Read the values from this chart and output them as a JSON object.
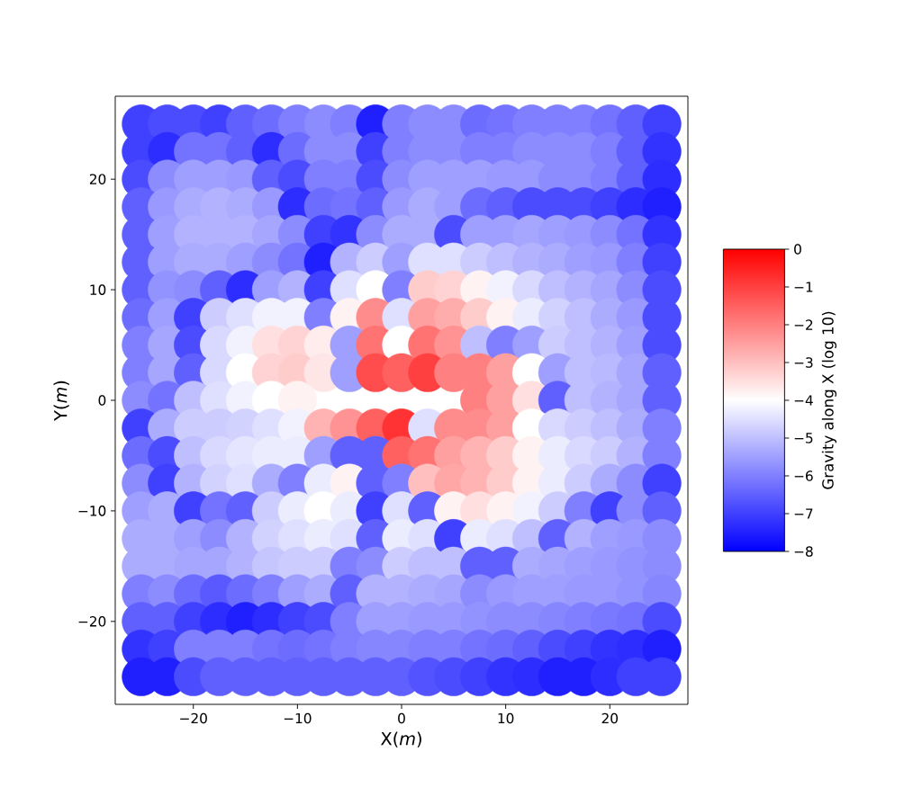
{
  "chart_data": {
    "type": "scatter",
    "xlabel": "X(*m*)",
    "ylabel": "Y(*m*)",
    "clabel": "Gravity along X (log 10)",
    "marker": "circle",
    "xlim": [
      -27.5,
      27.5
    ],
    "ylim": [
      -27.5,
      27.5
    ],
    "xticks": [
      {
        "value": -20,
        "label": "−20"
      },
      {
        "value": -10,
        "label": "−10"
      },
      0,
      10,
      20
    ],
    "yticks": [
      {
        "value": -20,
        "label": "−20"
      },
      {
        "value": -10,
        "label": "−10"
      },
      0,
      10,
      20
    ],
    "clim": [
      -8,
      0
    ],
    "cticks": [
      {
        "value": -8,
        "label": "−8"
      },
      {
        "value": -7,
        "label": "−7"
      },
      {
        "value": -6,
        "label": "−6"
      },
      {
        "value": -5,
        "label": "−5"
      },
      {
        "value": -4,
        "label": "−4"
      },
      {
        "value": -3,
        "label": "−3"
      },
      {
        "value": -2,
        "label": "−2"
      },
      {
        "value": -1,
        "label": "−1"
      },
      0
    ],
    "x": [
      -25,
      -22.5,
      -20,
      -17.5,
      -15,
      -12.5,
      -10,
      -7.5,
      -5,
      -2.5,
      0,
      2.5,
      5,
      7.5,
      10,
      12.5,
      15,
      17.5,
      20,
      22.5,
      25,
      -25,
      -22.5,
      -20,
      -17.5,
      -15,
      -12.5,
      -10,
      -7.5,
      -5,
      -2.5,
      0,
      2.5,
      5,
      7.5,
      10,
      12.5,
      15,
      17.5,
      20,
      22.5,
      25,
      -25,
      -22.5,
      -20,
      -17.5,
      -15,
      -12.5,
      -10,
      -7.5,
      -5,
      -2.5,
      0,
      2.5,
      5,
      7.5,
      10,
      12.5,
      15,
      17.5,
      20,
      22.5,
      25,
      -25,
      -22.5,
      -20,
      -17.5,
      -15,
      -12.5,
      -10,
      -7.5,
      -5,
      -2.5,
      0,
      2.5,
      5,
      7.5,
      10,
      12.5,
      15,
      17.5,
      20,
      22.5,
      25,
      -25,
      -22.5,
      -20,
      -17.5,
      -15,
      -12.5,
      -10,
      -7.5,
      -5,
      -2.5,
      0,
      2.5,
      5,
      7.5,
      10,
      12.5,
      15,
      17.5,
      20,
      22.5,
      25,
      -25,
      -22.5,
      -20,
      -17.5,
      -15,
      -12.5,
      -10,
      -7.5,
      -5,
      -2.5,
      0,
      2.5,
      5,
      7.5,
      10,
      12.5,
      15,
      17.5,
      20,
      22.5,
      25,
      -25,
      -22.5,
      -20,
      -17.5,
      -15,
      -12.5,
      -10,
      -7.5,
      -5,
      -2.5,
      0,
      2.5,
      5,
      7.5,
      10,
      12.5,
      15,
      17.5,
      20,
      22.5,
      25,
      -25,
      -22.5,
      -20,
      -17.5,
      -15,
      -12.5,
      -10,
      -7.5,
      -5,
      -2.5,
      0,
      2.5,
      5,
      7.5,
      10,
      12.5,
      15,
      17.5,
      20,
      22.5,
      25,
      -25,
      -22.5,
      -20,
      -17.5,
      -15,
      -12.5,
      -10,
      -7.5,
      -5,
      -2.5,
      0,
      2.5,
      5,
      7.5,
      10,
      12.5,
      15,
      17.5,
      20,
      22.5,
      25,
      -25,
      -22.5,
      -20,
      -17.5,
      -15,
      -12.5,
      -10,
      -7.5,
      -5,
      -2.5,
      0,
      2.5,
      5,
      7.5,
      10,
      12.5,
      15,
      17.5,
      20,
      22.5,
      25,
      -25,
      -22.5,
      -20,
      -17.5,
      -15,
      -12.5,
      -10,
      7.5,
      10,
      12.5,
      15,
      17.5,
      20,
      22.5,
      25,
      -25,
      -22.5,
      -20,
      -17.5,
      -15,
      -12.5,
      -10,
      -7.5,
      -5,
      -2.5,
      0,
      2.5,
      5,
      7.5,
      10,
      12.5,
      15,
      17.5,
      20,
      22.5,
      25,
      -25,
      -22.5,
      -20,
      -17.5,
      -15,
      -12.5,
      -10,
      -7.5,
      -5,
      -2.5,
      0,
      2.5,
      5,
      7.5,
      10,
      12.5,
      15,
      17.5,
      20,
      22.5,
      25,
      -25,
      -22.5,
      -20,
      -17.5,
      -15,
      -12.5,
      -10,
      -7.5,
      -5,
      -2.5,
      0,
      2.5,
      5,
      7.5,
      10,
      12.5,
      15,
      17.5,
      20,
      22.5,
      25,
      -25,
      -22.5,
      -20,
      -17.5,
      -15,
      -12.5,
      -10,
      -7.5,
      -5,
      -2.5,
      0,
      2.5,
      5,
      7.5,
      10,
      12.5,
      15,
      17.5,
      20,
      22.5,
      25,
      -25,
      -22.5,
      -20,
      -17.5,
      -15,
      -12.5,
      -10,
      -7.5,
      -5,
      -2.5,
      0,
      2.5,
      5,
      7.5,
      10,
      12.5,
      15,
      17.5,
      20,
      22.5,
      25,
      -25,
      -22.5,
      -20,
      -17.5,
      -15,
      -12.5,
      -10,
      -7.5,
      -5,
      -2.5,
      0,
      2.5,
      5,
      7.5,
      10,
      12.5,
      15,
      17.5,
      20,
      22.5,
      25,
      -25,
      -22.5,
      -20,
      -17.5,
      -15,
      -12.5,
      -10,
      -7.5,
      -5,
      -2.5,
      0,
      2.5,
      5,
      7.5,
      10,
      12.5,
      15,
      17.5,
      20,
      22.5,
      25,
      -25,
      -22.5,
      -20,
      -17.5,
      -15,
      -12.5,
      -10,
      -7.5,
      -5,
      -2.5,
      0,
      2.5,
      5,
      7.5,
      10,
      12.5,
      15,
      17.5,
      20,
      22.5,
      25,
      -25,
      -22.5,
      -20,
      -17.5,
      -15,
      -12.5,
      -10,
      -7.5,
      -5,
      -2.5,
      0,
      2.5,
      5,
      7.5,
      10,
      12.5,
      15,
      17.5,
      20,
      22.5,
      25,
      -25,
      -22.5,
      -20,
      -17.5,
      -15,
      -12.5,
      -10,
      -7.5,
      -5,
      -2.5,
      0,
      2.5,
      5,
      7.5,
      10,
      12.5,
      15,
      17.5,
      20,
      22.5,
      25
    ],
    "values": [
      25,
      25,
      25,
      25,
      25,
      25,
      25,
      25,
      25,
      25,
      25,
      25,
      25,
      25,
      25,
      25,
      25,
      25,
      25,
      25,
      25,
      22.5,
      22.5,
      22.5,
      22.5,
      22.5,
      22.5,
      22.5,
      22.5,
      22.5,
      22.5,
      22.5,
      22.5,
      22.5,
      22.5,
      22.5,
      22.5,
      22.5,
      22.5,
      22.5,
      22.5,
      22.5,
      20,
      20,
      20,
      20,
      20,
      20,
      20,
      20,
      20,
      20,
      20,
      20,
      20,
      20,
      20,
      20,
      20,
      20,
      20,
      20,
      20,
      17.5,
      17.5,
      17.5,
      17.5,
      17.5,
      17.5,
      17.5,
      17.5,
      17.5,
      17.5,
      17.5,
      17.5,
      17.5,
      17.5,
      17.5,
      17.5,
      17.5,
      17.5,
      17.5,
      17.5,
      17.5,
      15,
      15,
      15,
      15,
      15,
      15,
      15,
      15,
      15,
      15,
      15,
      15,
      15,
      15,
      15,
      15,
      15,
      15,
      15,
      15,
      15,
      12.5,
      12.5,
      12.5,
      12.5,
      12.5,
      12.5,
      12.5,
      12.5,
      12.5,
      12.5,
      12.5,
      12.5,
      12.5,
      12.5,
      12.5,
      12.5,
      12.5,
      12.5,
      12.5,
      12.5,
      12.5,
      10,
      10,
      10,
      10,
      10,
      10,
      10,
      10,
      10,
      10,
      10,
      10,
      10,
      10,
      10,
      10,
      10,
      10,
      10,
      10,
      10,
      7.5,
      7.5,
      7.5,
      7.5,
      7.5,
      7.5,
      7.5,
      7.5,
      7.5,
      7.5,
      7.5,
      7.5,
      7.5,
      7.5,
      7.5,
      7.5,
      7.5,
      7.5,
      7.5,
      7.5,
      7.5,
      5,
      5,
      5,
      5,
      5,
      5,
      5,
      5,
      5,
      5,
      5,
      5,
      5,
      5,
      5,
      5,
      5,
      5,
      5,
      5,
      5,
      2.5,
      2.5,
      2.5,
      2.5,
      2.5,
      2.5,
      2.5,
      2.5,
      2.5,
      2.5,
      2.5,
      2.5,
      2.5,
      2.5,
      2.5,
      2.5,
      2.5,
      2.5,
      2.5,
      2.5,
      2.5,
      0,
      0,
      0,
      0,
      0,
      0,
      0,
      0,
      0,
      0,
      0,
      0,
      0,
      0,
      0,
      -2.5,
      -2.5,
      -2.5,
      -2.5,
      -2.5,
      -2.5,
      -2.5,
      -2.5,
      -2.5,
      -2.5,
      -2.5,
      -2.5,
      -2.5,
      -2.5,
      -2.5,
      -2.5,
      -2.5,
      -2.5,
      -2.5,
      -2.5,
      -2.5,
      -5,
      -5,
      -5,
      -5,
      -5,
      -5,
      -5,
      -5,
      -5,
      -5,
      -5,
      -5,
      -5,
      -5,
      -5,
      -5,
      -5,
      -5,
      -5,
      -5,
      -5,
      -7.5,
      -7.5,
      -7.5,
      -7.5,
      -7.5,
      -7.5,
      -7.5,
      -7.5,
      -7.5,
      -7.5,
      -7.5,
      -7.5,
      -7.5,
      -7.5,
      -7.5,
      -7.5,
      -7.5,
      -7.5,
      -7.5,
      -7.5,
      -7.5,
      -10,
      -10,
      -10,
      -10,
      -10,
      -10,
      -10,
      -10,
      -10,
      -10,
      -10,
      -10,
      -10,
      -10,
      -10,
      -10,
      -10,
      -10,
      -10,
      -10,
      -10,
      -12.5,
      -12.5,
      -12.5,
      -12.5,
      -12.5,
      -12.5,
      -12.5,
      -12.5,
      -12.5,
      -12.5,
      -12.5,
      -12.5,
      -12.5,
      -12.5,
      -12.5,
      -12.5,
      -12.5,
      -12.5,
      -12.5,
      -12.5,
      -12.5,
      -15,
      -15,
      -15,
      -15,
      -15,
      -15,
      -15,
      -15,
      -15,
      -15,
      -15,
      -15,
      -15,
      -15,
      -15,
      -15,
      -15,
      -15,
      -15,
      -15,
      -15,
      -17.5,
      -17.5,
      -17.5,
      -17.5,
      -17.5,
      -17.5,
      -17.5,
      -17.5,
      -17.5,
      -17.5,
      -17.5,
      -17.5,
      -17.5,
      -17.5,
      -17.5,
      -17.5,
      -17.5,
      -17.5,
      -17.5,
      -17.5,
      -17.5,
      -20,
      -20,
      -20,
      -20,
      -20,
      -20,
      -20,
      -20,
      -20,
      -20,
      -20,
      -20,
      -20,
      -20,
      -20,
      -20,
      -20,
      -20,
      -20,
      -20,
      -20,
      -22.5,
      -22.5,
      -22.5,
      -22.5,
      -22.5,
      -22.5,
      -22.5,
      -22.5,
      -22.5,
      -22.5,
      -22.5,
      -22.5,
      -22.5,
      -22.5,
      -22.5,
      -22.5,
      -22.5,
      -22.5,
      -22.5,
      -22.5,
      -22.5,
      -25,
      -25,
      -25,
      -25,
      -25,
      -25,
      -25,
      -25,
      -25,
      -25,
      -25,
      -25,
      -25,
      -25,
      -25,
      -25,
      -25,
      -25,
      -25,
      -25,
      -25
    ],
    "cvalues": [
      -7,
      -6.8,
      -6.8,
      -7,
      -6.5,
      -6.3,
      -6,
      -5.8,
      -6,
      -7.5,
      -6,
      -5.8,
      -5.8,
      -6.3,
      -6.2,
      -6,
      -6,
      -6,
      -6.2,
      -6.5,
      -7,
      -7,
      -7.3,
      -6.2,
      -6.2,
      -6.5,
      -7.3,
      -6.3,
      -5.8,
      -5.8,
      -7,
      -6,
      -5.8,
      -5.8,
      -6,
      -6,
      -5.8,
      -5.8,
      -5.8,
      -6,
      -6.5,
      -7.2,
      -6.8,
      -5.8,
      -5.5,
      -5.5,
      -5.6,
      -6.5,
      -6.8,
      -6,
      -6,
      -6.8,
      -5.8,
      -5.5,
      -5.5,
      -5.5,
      -5.6,
      -5.6,
      -5.8,
      -5.8,
      -6,
      -6.5,
      -7.3,
      -6.5,
      -5.6,
      -5.3,
      -5.2,
      -5.3,
      -5.6,
      -7.3,
      -6.3,
      -6.2,
      -6.5,
      -5.6,
      -5.3,
      -5.5,
      -6.3,
      -6.5,
      -6.8,
      -6.8,
      -6.8,
      -7,
      -7.3,
      -7.5,
      -6.5,
      -5.5,
      -5.2,
      -5.2,
      -5.2,
      -5.4,
      -5.8,
      -7,
      -7.2,
      -5.8,
      -5.3,
      -5.3,
      -6.8,
      -5.5,
      -5.5,
      -5.4,
      -5.5,
      -5.6,
      -5.8,
      -6.2,
      -7.2,
      -6.5,
      -5.5,
      -5.3,
      -5.3,
      -5.5,
      -5.8,
      -6.2,
      -7.5,
      -5.2,
      -4.8,
      -5.5,
      -4.5,
      -4.5,
      -4.8,
      -5,
      -5.2,
      -5.3,
      -5.5,
      -5.6,
      -6,
      -7,
      -6.5,
      -5.7,
      -5.8,
      -6.5,
      -7.3,
      -5.5,
      -5.2,
      -7,
      -4.5,
      -4,
      -6,
      -3.2,
      -3.3,
      -3.8,
      -4.2,
      -4.6,
      -5,
      -5.2,
      -5.4,
      -5.8,
      -6.8,
      -6.3,
      -5.5,
      -7,
      -4.8,
      -4.5,
      -4.2,
      -4.2,
      -6,
      -3.8,
      -2.2,
      -4.5,
      -2.5,
      -2.7,
      -3.2,
      -3.8,
      -4.3,
      -4.7,
      -5,
      -5.3,
      -5.6,
      -6.8,
      -6,
      -5.4,
      -6.8,
      -4.6,
      -4.2,
      -3.5,
      -3.3,
      -3.7,
      -5.5,
      -1.8,
      -4,
      -1.8,
      -2.3,
      -5,
      -6,
      -5.5,
      -4.8,
      -5,
      -5.2,
      -5.5,
      -6.8,
      -6,
      -5.4,
      -6.5,
      -4.6,
      -4,
      -3.3,
      -3.2,
      -3.6,
      -5.5,
      -1.2,
      -1.5,
      -1,
      -2,
      -2,
      -2.5,
      -4,
      -5.5,
      -5,
      -5.1,
      -5.4,
      -6.5,
      -5.8,
      -6.2,
      -5,
      -4.5,
      -4.2,
      -4,
      -3.8,
      -2,
      -2.5,
      -3.5,
      -6.5,
      -5,
      -5.2,
      -5.4,
      -6.5,
      -7,
      -5.3,
      -4.8,
      -4.8,
      -4.7,
      -4.5,
      -4.2,
      -2.8,
      -2.3,
      -1.5,
      -0.8,
      -4.5,
      -2.2,
      -2.2,
      -2.5,
      -4,
      -4.6,
      -4.8,
      -5,
      -5.3,
      -6,
      -6.3,
      -6.8,
      -5,
      -4.6,
      -4.4,
      -4.3,
      -4.3,
      -5.5,
      -6.5,
      -6.5,
      -1.5,
      -1.8,
      -2.5,
      -2.8,
      -3.2,
      -3.8,
      -4.3,
      -4.6,
      -4.8,
      -5.2,
      -6,
      -5.8,
      -7,
      -5.2,
      -4.7,
      -4.5,
      -5.3,
      -6,
      -4.3,
      -3.8,
      -6.5,
      -6,
      -3,
      -2.6,
      -2.8,
      -3.2,
      -3.8,
      -4.3,
      -4.8,
      -5.3,
      -5.8,
      -7,
      -5.5,
      -5.3,
      -7,
      -6.2,
      -6.5,
      -4.8,
      -4.3,
      -4,
      -4.3,
      -7,
      -4.5,
      -6.5,
      -3.8,
      -3.5,
      -3.8,
      -4.2,
      -4.8,
      -6,
      -7,
      -5.8,
      -6.5,
      -5.3,
      -5.3,
      -5.5,
      -5.8,
      -5.2,
      -4.7,
      -4.5,
      -4.3,
      -4.5,
      -6.5,
      -4.3,
      -4.5,
      -7,
      -4.3,
      -4.5,
      -5,
      -6.5,
      -5.2,
      -5.5,
      -5.6,
      -5.8,
      -5.3,
      -5.3,
      -5.4,
      -5.4,
      -5.2,
      -4.9,
      -4.8,
      -4.8,
      -6,
      -5.8,
      -4.8,
      -5,
      -5,
      -6.5,
      -6.5,
      -5.3,
      -5.4,
      -5.5,
      -5.6,
      -5.7,
      -5.8,
      -6,
      -5.8,
      -6.3,
      -6.6,
      -6.3,
      -6,
      -5.5,
      -5.3,
      -6.5,
      -5.2,
      -5.2,
      -5.3,
      -5.4,
      -5.8,
      -5.6,
      -5.5,
      -5.5,
      -5.6,
      -5.6,
      -5.7,
      -5.9,
      -6.5,
      -6.5,
      -7,
      -7.3,
      -7.5,
      -7.3,
      -7,
      -6.8,
      -6,
      -5.5,
      -5.5,
      -5.6,
      -5.6,
      -5.7,
      -5.8,
      -5.8,
      -5.9,
      -6,
      -6.1,
      -6.2,
      -6.8,
      -7.2,
      -7,
      -6,
      -6,
      -6,
      -6.2,
      -6.3,
      -6.2,
      -6,
      -5.9,
      -5.9,
      -6,
      -6,
      -6.2,
      -6.3,
      -6.5,
      -6.8,
      -7,
      -7.2,
      -7.3,
      -7.5,
      -7.5,
      -7.5,
      -6.8,
      -6.5,
      -6.5,
      -6.5,
      -6.5,
      -6.5,
      -6.5,
      -6.5,
      -6.5,
      -6.7,
      -6.8,
      -7,
      -7.2,
      -7.3,
      -7.5,
      -7.5,
      -7.3,
      -7,
      -7
    ]
  }
}
